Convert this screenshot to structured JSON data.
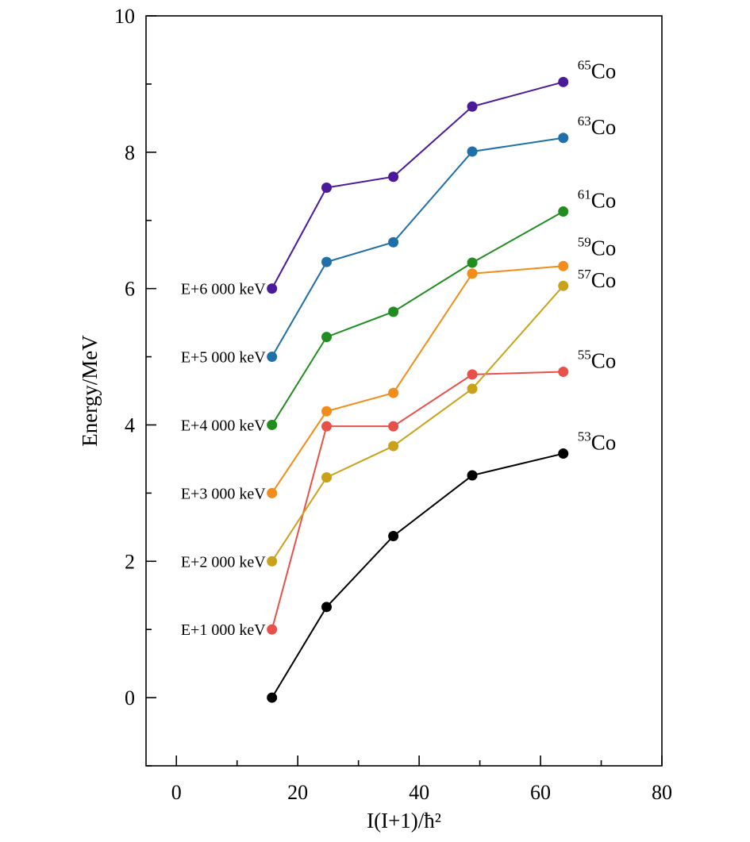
{
  "chart_data": {
    "type": "line",
    "title": "",
    "xlabel": "I(I+1)/ħ²",
    "ylabel": "Energy/MeV",
    "xlim": [
      -5,
      80
    ],
    "ylim": [
      -1,
      10
    ],
    "xticks": [
      0,
      20,
      40,
      60,
      80
    ],
    "yticks": [
      0,
      2,
      4,
      6,
      8,
      10
    ],
    "grid": false,
    "legend": "none",
    "x": [
      15.75,
      24.75,
      35.75,
      48.75,
      63.75
    ],
    "series": [
      {
        "name": "53Co",
        "mass": "53",
        "element": "Co",
        "offset_label": "",
        "color": "#000000",
        "values": [
          0.0,
          1.33,
          2.37,
          3.26,
          3.58
        ]
      },
      {
        "name": "55Co",
        "mass": "55",
        "element": "Co",
        "offset_label": "E+1 000 keV",
        "color": "#e8504a",
        "values": [
          1.0,
          3.98,
          3.98,
          4.74,
          4.78
        ]
      },
      {
        "name": "57Co",
        "mass": "57",
        "element": "Co",
        "offset_label": "E+2 000 keV",
        "color": "#c9a21a",
        "values": [
          2.0,
          3.23,
          3.69,
          4.53,
          6.04
        ]
      },
      {
        "name": "59Co",
        "mass": "59",
        "element": "Co",
        "offset_label": "E+3 000 keV",
        "color": "#f28c1a",
        "values": [
          3.0,
          4.2,
          4.47,
          6.22,
          6.33
        ]
      },
      {
        "name": "61Co",
        "mass": "61",
        "element": "Co",
        "offset_label": "E+4 000 keV",
        "color": "#1f8e1f",
        "values": [
          4.0,
          5.29,
          5.66,
          6.38,
          7.13
        ]
      },
      {
        "name": "63Co",
        "mass": "63",
        "element": "Co",
        "offset_label": "E+5 000 keV",
        "color": "#1f6fa8",
        "values": [
          5.0,
          6.39,
          6.68,
          8.01,
          8.21
        ]
      },
      {
        "name": "65Co",
        "mass": "65",
        "element": "Co",
        "offset_label": "E+6 000 keV",
        "color": "#4b1a9a",
        "values": [
          6.0,
          7.48,
          7.64,
          8.67,
          9.03
        ]
      }
    ]
  }
}
